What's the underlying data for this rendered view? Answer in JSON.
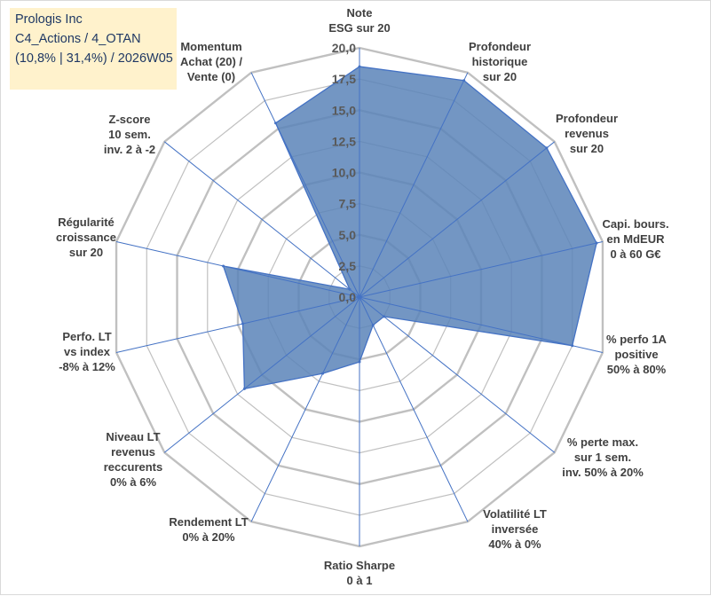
{
  "header": {
    "line1": "Prologis Inc",
    "line2": "C4_Actions / 4_OTAN",
    "line3": "(10,8% | 31,4%) / 2026W05"
  },
  "colors": {
    "fill": "#5b84b8",
    "stroke": "#4472c4",
    "grid": "#c0c0c0",
    "spoke": "#4472c4",
    "title_bg": "#fff2cc",
    "title_text": "#1f3864"
  },
  "chart_data": {
    "type": "radar",
    "title": "Prologis Inc",
    "rmin": 0,
    "rmax": 20,
    "tick_values": [
      0,
      2.5,
      5,
      7.5,
      10,
      12.5,
      15,
      17.5,
      20
    ],
    "tick_labels": [
      "0,0",
      "2,5",
      "5,0",
      "7,5",
      "10,0",
      "12,5",
      "15,0",
      "17,5",
      "20,0"
    ],
    "categories": [
      [
        "Note",
        "ESG sur 20"
      ],
      [
        "Profondeur",
        "historique",
        "sur 20"
      ],
      [
        "Profondeur",
        "revenus",
        "sur 20"
      ],
      [
        "Capi. bours.",
        "en MdEUR",
        "0 à 60 G€"
      ],
      [
        "% perfo 1A",
        "positive",
        "50% à 80%"
      ],
      [
        "% perte max.",
        "sur 1 sem.",
        "inv. 50% à 20%"
      ],
      [
        "Volatilité LT",
        "inversée",
        "40% à 0%"
      ],
      [
        "Ratio Sharpe",
        "0 à 1"
      ],
      [
        "Rendement LT",
        "0% à 20%"
      ],
      [
        "Niveau LT",
        "revenus",
        "reccurents",
        "0% à 6%"
      ],
      [
        "Perfo. LT",
        "vs index",
        "-8% à 12%"
      ],
      [
        "Régularité",
        "croissance",
        "sur 20"
      ],
      [
        "Z-score",
        "10 sem.",
        "inv. 2 à -2"
      ],
      [
        "Momentum",
        "Achat (20) /",
        "Vente (0)"
      ]
    ],
    "series": [
      {
        "name": "Prologis Inc",
        "values": [
          18.5,
          19.3,
          19.2,
          19.5,
          17.5,
          2.5,
          2.5,
          5.2,
          6.8,
          11.8,
          9.6,
          11.2,
          1.0,
          15.5
        ]
      }
    ]
  }
}
